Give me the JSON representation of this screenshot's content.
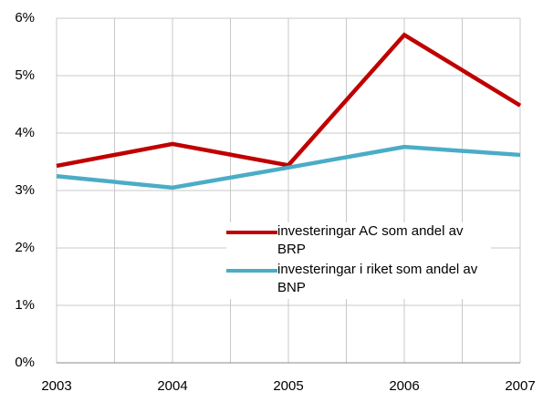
{
  "chart_data": {
    "type": "line",
    "x": [
      2003,
      2004,
      2005,
      2006,
      2007
    ],
    "xlim": [
      2003,
      2007
    ],
    "xticks": [
      2003,
      2004,
      2005,
      2006,
      2007
    ],
    "series": [
      {
        "name": "investeringar AC som andel av BRP",
        "color": "#c00000",
        "values": [
          3.43,
          3.81,
          3.44,
          5.71,
          4.48
        ]
      },
      {
        "name": "investeringar i riket som andel av BNP",
        "color": "#4bacc6",
        "values": [
          3.25,
          3.05,
          3.4,
          3.76,
          3.62
        ]
      }
    ],
    "ylim": [
      0,
      6
    ],
    "yticks": [
      {
        "value": 0,
        "label": "0%"
      },
      {
        "value": 1,
        "label": "1%"
      },
      {
        "value": 2,
        "label": "2%"
      },
      {
        "value": 3,
        "label": "3%"
      },
      {
        "value": 4,
        "label": "4%"
      },
      {
        "value": 5,
        "label": "5%"
      },
      {
        "value": 6,
        "label": "6%"
      }
    ],
    "grid": true
  }
}
